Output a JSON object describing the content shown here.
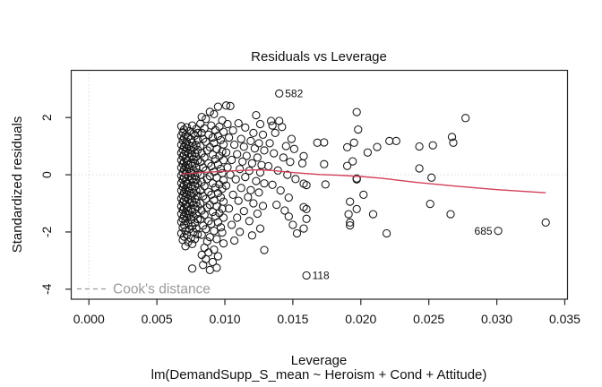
{
  "title": "Residuals vs Leverage",
  "axes": {
    "xlabel": "Leverage",
    "sublabel": "lm(DemandSupp_S_mean ~ Heroism + Cond + Attitude)",
    "ylabel": "Standardized residuals"
  },
  "legend": {
    "label": "Cook's distance",
    "color": "#9a9a9a",
    "style": "dashed"
  },
  "colors": {
    "point_stroke": "#161616",
    "smooth_line": "#d23f5a",
    "reference_dotted": "#c8c8c8",
    "axis": "#262626",
    "text": "#111111",
    "legend_gray": "#9a9a9a"
  },
  "chart_data": {
    "type": "scatter",
    "title": "Residuals vs Leverage",
    "xlabel": "Leverage",
    "ylabel": "Standardized residuals",
    "xlim": [
      -0.0013,
      0.0352
    ],
    "ylim": [
      -4.35,
      3.65
    ],
    "x_ticks": [
      0.0,
      0.005,
      0.01,
      0.015,
      0.02,
      0.025,
      0.03,
      0.035
    ],
    "x_tick_labels": [
      "0.000",
      "0.005",
      "0.010",
      "0.015",
      "0.020",
      "0.025",
      "0.030",
      "0.035"
    ],
    "y_ticks": [
      -4,
      -2,
      0,
      2
    ],
    "y_tick_labels": [
      "-4",
      "-2",
      "0",
      "2"
    ],
    "grid": false,
    "reference_lines": {
      "h": 0,
      "v": 0
    },
    "legend_position": "bottom-left",
    "labeled_points": [
      {
        "id": "582",
        "x": 0.014,
        "y": 2.84,
        "side": "right"
      },
      {
        "id": "118",
        "x": 0.016,
        "y": -3.52,
        "side": "right"
      },
      {
        "id": "685",
        "x": 0.0301,
        "y": -1.96,
        "side": "left"
      }
    ],
    "smooth_line": [
      [
        0.0068,
        0.02
      ],
      [
        0.008,
        0.07
      ],
      [
        0.009,
        0.1
      ],
      [
        0.01,
        0.12
      ],
      [
        0.0112,
        0.15
      ],
      [
        0.0125,
        0.17
      ],
      [
        0.0135,
        0.15
      ],
      [
        0.0145,
        0.1
      ],
      [
        0.0155,
        0.06
      ],
      [
        0.017,
        0.01
      ],
      [
        0.0185,
        -0.02
      ],
      [
        0.02,
        -0.06
      ],
      [
        0.0215,
        -0.12
      ],
      [
        0.024,
        -0.26
      ],
      [
        0.027,
        -0.4
      ],
      [
        0.03,
        -0.52
      ],
      [
        0.0336,
        -0.63
      ]
    ],
    "points": [
      [
        0.0068,
        1.7
      ],
      [
        0.0072,
        1.66
      ],
      [
        0.0076,
        1.72
      ],
      [
        0.007,
        1.58
      ],
      [
        0.0079,
        1.6
      ],
      [
        0.0074,
        1.52
      ],
      [
        0.0069,
        1.48
      ],
      [
        0.0077,
        1.44
      ],
      [
        0.0071,
        1.4
      ],
      [
        0.008,
        1.46
      ],
      [
        0.0068,
        1.36
      ],
      [
        0.0073,
        1.33
      ],
      [
        0.0078,
        1.37
      ],
      [
        0.007,
        1.28
      ],
      [
        0.0075,
        1.24
      ],
      [
        0.0069,
        1.2
      ],
      [
        0.008,
        1.22
      ],
      [
        0.0072,
        1.16
      ],
      [
        0.0076,
        1.12
      ],
      [
        0.0071,
        1.08
      ],
      [
        0.0068,
        1.05
      ],
      [
        0.0074,
        1.02
      ],
      [
        0.0079,
        1.04
      ],
      [
        0.007,
        0.98
      ],
      [
        0.0077,
        0.95
      ],
      [
        0.0072,
        0.92
      ],
      [
        0.0069,
        0.88
      ],
      [
        0.0075,
        0.85
      ],
      [
        0.008,
        0.87
      ],
      [
        0.0071,
        0.8
      ],
      [
        0.0068,
        0.77
      ],
      [
        0.0073,
        0.74
      ],
      [
        0.0078,
        0.76
      ],
      [
        0.007,
        0.7
      ],
      [
        0.0076,
        0.67
      ],
      [
        0.0069,
        0.64
      ],
      [
        0.0074,
        0.61
      ],
      [
        0.0079,
        0.63
      ],
      [
        0.0071,
        0.57
      ],
      [
        0.0077,
        0.54
      ],
      [
        0.0068,
        0.51
      ],
      [
        0.0072,
        0.48
      ],
      [
        0.008,
        0.5
      ],
      [
        0.007,
        0.44
      ],
      [
        0.0075,
        0.41
      ],
      [
        0.0069,
        0.38
      ],
      [
        0.0078,
        0.4
      ],
      [
        0.0073,
        0.34
      ],
      [
        0.0076,
        0.31
      ],
      [
        0.0071,
        0.28
      ],
      [
        0.0068,
        0.25
      ],
      [
        0.0074,
        0.22
      ],
      [
        0.0079,
        0.24
      ],
      [
        0.007,
        0.18
      ],
      [
        0.0077,
        0.15
      ],
      [
        0.0072,
        0.12
      ],
      [
        0.0069,
        0.08
      ],
      [
        0.0075,
        0.05
      ],
      [
        0.008,
        0.07
      ],
      [
        0.0071,
        0.01
      ],
      [
        0.0068,
        -0.03
      ],
      [
        0.0073,
        -0.06
      ],
      [
        0.0078,
        -0.04
      ],
      [
        0.007,
        -0.1
      ],
      [
        0.0076,
        -0.13
      ],
      [
        0.0069,
        -0.16
      ],
      [
        0.0074,
        -0.19
      ],
      [
        0.0079,
        -0.17
      ],
      [
        0.0071,
        -0.23
      ],
      [
        0.0077,
        -0.26
      ],
      [
        0.0068,
        -0.29
      ],
      [
        0.0072,
        -0.32
      ],
      [
        0.008,
        -0.3
      ],
      [
        0.007,
        -0.36
      ],
      [
        0.0075,
        -0.39
      ],
      [
        0.0069,
        -0.42
      ],
      [
        0.0078,
        -0.4
      ],
      [
        0.0073,
        -0.46
      ],
      [
        0.0076,
        -0.49
      ],
      [
        0.0071,
        -0.52
      ],
      [
        0.0068,
        -0.55
      ],
      [
        0.0074,
        -0.58
      ],
      [
        0.0079,
        -0.56
      ],
      [
        0.007,
        -0.62
      ],
      [
        0.0077,
        -0.65
      ],
      [
        0.0072,
        -0.68
      ],
      [
        0.0069,
        -0.72
      ],
      [
        0.0075,
        -0.75
      ],
      [
        0.008,
        -0.73
      ],
      [
        0.0071,
        -0.79
      ],
      [
        0.0068,
        -0.83
      ],
      [
        0.0073,
        -0.86
      ],
      [
        0.0078,
        -0.84
      ],
      [
        0.007,
        -0.9
      ],
      [
        0.0076,
        -0.93
      ],
      [
        0.0069,
        -0.96
      ],
      [
        0.0074,
        -0.99
      ],
      [
        0.0079,
        -0.97
      ],
      [
        0.0071,
        -1.03
      ],
      [
        0.0077,
        -1.06
      ],
      [
        0.0068,
        -1.1
      ],
      [
        0.0072,
        -1.13
      ],
      [
        0.008,
        -1.11
      ],
      [
        0.007,
        -1.17
      ],
      [
        0.0075,
        -1.2
      ],
      [
        0.0069,
        -1.23
      ],
      [
        0.0078,
        -1.21
      ],
      [
        0.0073,
        -1.27
      ],
      [
        0.0076,
        -1.3
      ],
      [
        0.0071,
        -1.33
      ],
      [
        0.0068,
        -1.37
      ],
      [
        0.0074,
        -1.4
      ],
      [
        0.0079,
        -1.38
      ],
      [
        0.007,
        -1.44
      ],
      [
        0.0077,
        -1.47
      ],
      [
        0.0072,
        -1.5
      ],
      [
        0.0069,
        -1.54
      ],
      [
        0.0075,
        -1.57
      ],
      [
        0.008,
        -1.55
      ],
      [
        0.0071,
        -1.61
      ],
      [
        0.0068,
        -1.65
      ],
      [
        0.0073,
        -1.7
      ],
      [
        0.0078,
        -1.68
      ],
      [
        0.007,
        -1.76
      ],
      [
        0.0076,
        -1.8
      ],
      [
        0.0069,
        -1.85
      ],
      [
        0.0074,
        -1.9
      ],
      [
        0.0079,
        -1.88
      ],
      [
        0.0071,
        -1.96
      ],
      [
        0.0077,
        -2.0
      ],
      [
        0.0068,
        -2.05
      ],
      [
        0.0072,
        -2.1
      ],
      [
        0.008,
        -2.08
      ],
      [
        0.007,
        -2.16
      ],
      [
        0.0075,
        -2.22
      ],
      [
        0.0069,
        -2.28
      ],
      [
        0.0078,
        -2.25
      ],
      [
        0.0073,
        -2.35
      ],
      [
        0.0076,
        -2.42
      ],
      [
        0.0071,
        -2.5
      ],
      [
        0.0076,
        -3.28
      ],
      [
        0.0095,
        2.38
      ],
      [
        0.0089,
        2.2
      ],
      [
        0.0083,
        2.02
      ],
      [
        0.0092,
        2.12
      ],
      [
        0.0086,
        1.95
      ],
      [
        0.0098,
        1.9
      ],
      [
        0.0082,
        1.78
      ],
      [
        0.009,
        1.72
      ],
      [
        0.0096,
        1.68
      ],
      [
        0.0085,
        1.62
      ],
      [
        0.0093,
        1.56
      ],
      [
        0.0099,
        1.5
      ],
      [
        0.0083,
        1.46
      ],
      [
        0.0088,
        1.4
      ],
      [
        0.0095,
        1.36
      ],
      [
        0.0091,
        1.3
      ],
      [
        0.0084,
        1.25
      ],
      [
        0.0097,
        1.21
      ],
      [
        0.0086,
        1.15
      ],
      [
        0.0092,
        1.1
      ],
      [
        0.0099,
        1.06
      ],
      [
        0.0082,
        1.0
      ],
      [
        0.0089,
        0.96
      ],
      [
        0.0094,
        0.9
      ],
      [
        0.0087,
        0.85
      ],
      [
        0.0098,
        0.81
      ],
      [
        0.0083,
        0.75
      ],
      [
        0.0091,
        0.7
      ],
      [
        0.0096,
        0.66
      ],
      [
        0.0085,
        0.6
      ],
      [
        0.0093,
        0.55
      ],
      [
        0.0099,
        0.51
      ],
      [
        0.0082,
        0.45
      ],
      [
        0.0088,
        0.4
      ],
      [
        0.0095,
        0.36
      ],
      [
        0.009,
        0.3
      ],
      [
        0.0084,
        0.25
      ],
      [
        0.0097,
        0.21
      ],
      [
        0.0086,
        0.15
      ],
      [
        0.0092,
        0.1
      ],
      [
        0.0098,
        0.06
      ],
      [
        0.0082,
        0.0
      ],
      [
        0.0089,
        -0.05
      ],
      [
        0.0094,
        -0.1
      ],
      [
        0.0087,
        -0.15
      ],
      [
        0.0099,
        -0.19
      ],
      [
        0.0083,
        -0.25
      ],
      [
        0.0091,
        -0.3
      ],
      [
        0.0096,
        -0.34
      ],
      [
        0.0085,
        -0.4
      ],
      [
        0.0093,
        -0.45
      ],
      [
        0.0098,
        -0.49
      ],
      [
        0.0082,
        -0.55
      ],
      [
        0.0088,
        -0.6
      ],
      [
        0.0095,
        -0.64
      ],
      [
        0.009,
        -0.7
      ],
      [
        0.0084,
        -0.75
      ],
      [
        0.0097,
        -0.79
      ],
      [
        0.0086,
        -0.85
      ],
      [
        0.0092,
        -0.9
      ],
      [
        0.0099,
        -0.94
      ],
      [
        0.0082,
        -1.0
      ],
      [
        0.0089,
        -1.05
      ],
      [
        0.0094,
        -1.1
      ],
      [
        0.0087,
        -1.15
      ],
      [
        0.0098,
        -1.19
      ],
      [
        0.0083,
        -1.25
      ],
      [
        0.0091,
        -1.3
      ],
      [
        0.0096,
        -1.34
      ],
      [
        0.0085,
        -1.4
      ],
      [
        0.0093,
        -1.45
      ],
      [
        0.0099,
        -1.5
      ],
      [
        0.0082,
        -1.56
      ],
      [
        0.0088,
        -1.62
      ],
      [
        0.0095,
        -1.66
      ],
      [
        0.009,
        -1.72
      ],
      [
        0.0084,
        -1.78
      ],
      [
        0.0097,
        -1.84
      ],
      [
        0.0086,
        -1.9
      ],
      [
        0.0092,
        -1.96
      ],
      [
        0.0098,
        -2.02
      ],
      [
        0.0083,
        -2.1
      ],
      [
        0.0089,
        -2.18
      ],
      [
        0.0094,
        -2.25
      ],
      [
        0.0087,
        -2.33
      ],
      [
        0.0099,
        -2.4
      ],
      [
        0.0085,
        -2.55
      ],
      [
        0.0092,
        -2.62
      ],
      [
        0.0088,
        -2.72
      ],
      [
        0.0083,
        -2.8
      ],
      [
        0.0095,
        -2.85
      ],
      [
        0.0086,
        -2.95
      ],
      [
        0.0091,
        -3.05
      ],
      [
        0.0084,
        -3.15
      ],
      [
        0.0094,
        -3.25
      ],
      [
        0.0089,
        -3.33
      ],
      [
        0.0104,
        2.4
      ],
      [
        0.0101,
        2.42
      ],
      [
        0.0102,
        1.77
      ],
      [
        0.0123,
        2.08
      ],
      [
        0.0126,
        1.77
      ],
      [
        0.011,
        1.8
      ],
      [
        0.0115,
        1.65
      ],
      [
        0.0106,
        1.55
      ],
      [
        0.0121,
        1.46
      ],
      [
        0.0128,
        1.4
      ],
      [
        0.0103,
        1.3
      ],
      [
        0.0112,
        1.25
      ],
      [
        0.0119,
        1.18
      ],
      [
        0.0125,
        1.1
      ],
      [
        0.0107,
        1.05
      ],
      [
        0.0114,
        0.98
      ],
      [
        0.0122,
        0.92
      ],
      [
        0.0129,
        0.85
      ],
      [
        0.0101,
        0.78
      ],
      [
        0.0109,
        0.72
      ],
      [
        0.0116,
        0.66
      ],
      [
        0.0124,
        0.6
      ],
      [
        0.0105,
        0.52
      ],
      [
        0.0113,
        0.46
      ],
      [
        0.012,
        0.4
      ],
      [
        0.0127,
        0.34
      ],
      [
        0.0102,
        0.26
      ],
      [
        0.0111,
        0.2
      ],
      [
        0.0118,
        0.14
      ],
      [
        0.0126,
        0.08
      ],
      [
        0.0104,
        0.0
      ],
      [
        0.0115,
        -0.08
      ],
      [
        0.0108,
        -0.16
      ],
      [
        0.0123,
        -0.22
      ],
      [
        0.0129,
        -0.3
      ],
      [
        0.0101,
        -0.38
      ],
      [
        0.0112,
        -0.46
      ],
      [
        0.0119,
        -0.54
      ],
      [
        0.0125,
        -0.62
      ],
      [
        0.0106,
        -0.7
      ],
      [
        0.0117,
        -0.78
      ],
      [
        0.011,
        -0.91
      ],
      [
        0.0121,
        -1.0
      ],
      [
        0.0128,
        -1.09
      ],
      [
        0.0103,
        -1.18
      ],
      [
        0.0114,
        -1.27
      ],
      [
        0.0124,
        -1.36
      ],
      [
        0.0109,
        -1.5
      ],
      [
        0.0118,
        -1.62
      ],
      [
        0.0105,
        -1.75
      ],
      [
        0.0126,
        -1.88
      ],
      [
        0.0111,
        -2.0
      ],
      [
        0.012,
        -2.12
      ],
      [
        0.0107,
        -2.3
      ],
      [
        0.0129,
        -2.63
      ],
      [
        0.0134,
        1.88
      ],
      [
        0.014,
        1.88
      ],
      [
        0.0135,
        1.72
      ],
      [
        0.0142,
        1.67
      ],
      [
        0.0137,
        1.46
      ],
      [
        0.0149,
        1.25
      ],
      [
        0.0133,
        1.1
      ],
      [
        0.0145,
        1.0
      ],
      [
        0.0151,
        0.9
      ],
      [
        0.0136,
        0.75
      ],
      [
        0.0143,
        0.6
      ],
      [
        0.0148,
        0.45
      ],
      [
        0.0132,
        0.3
      ],
      [
        0.0139,
        0.15
      ],
      [
        0.0146,
        0.0
      ],
      [
        0.0152,
        -0.15
      ],
      [
        0.0135,
        -0.35
      ],
      [
        0.0141,
        -0.55
      ],
      [
        0.0147,
        -0.8
      ],
      [
        0.0138,
        -1.05
      ],
      [
        0.0144,
        -1.25
      ],
      [
        0.0147,
        -1.46
      ],
      [
        0.015,
        -1.75
      ],
      [
        0.0153,
        -2.05
      ],
      [
        0.0158,
        0.65
      ],
      [
        0.0157,
        0.4
      ],
      [
        0.0168,
        1.12
      ],
      [
        0.0173,
        1.13
      ],
      [
        0.0173,
        0.37
      ],
      [
        0.019,
        0.96
      ],
      [
        0.0195,
        1.12
      ],
      [
        0.0197,
        2.19
      ],
      [
        0.0198,
        1.58
      ],
      [
        0.0205,
        0.78
      ],
      [
        0.0212,
        0.97
      ],
      [
        0.019,
        0.31
      ],
      [
        0.0194,
        0.47
      ],
      [
        0.0197,
        -0.13
      ],
      [
        0.0158,
        -0.31
      ],
      [
        0.016,
        -0.36
      ],
      [
        0.0174,
        -0.34
      ],
      [
        0.0197,
        -0.16
      ],
      [
        0.0202,
        -0.7
      ],
      [
        0.0192,
        -0.94
      ],
      [
        0.0158,
        -1.13
      ],
      [
        0.016,
        -1.2
      ],
      [
        0.0197,
        -1.2
      ],
      [
        0.0209,
        -1.38
      ],
      [
        0.0191,
        -1.38
      ],
      [
        0.0192,
        -1.67
      ],
      [
        0.0192,
        -1.77
      ],
      [
        0.016,
        -1.54
      ],
      [
        0.0158,
        -1.88
      ],
      [
        0.0219,
        -2.05
      ],
      [
        0.0221,
        1.18
      ],
      [
        0.0226,
        1.18
      ],
      [
        0.0277,
        1.98
      ],
      [
        0.0243,
        0.99
      ],
      [
        0.0253,
        1.03
      ],
      [
        0.0267,
        1.32
      ],
      [
        0.0268,
        1.12
      ],
      [
        0.0243,
        0.22
      ],
      [
        0.0252,
        -0.1
      ],
      [
        0.0251,
        -1.02
      ],
      [
        0.0266,
        -1.38
      ],
      [
        0.0336,
        -1.67
      ]
    ]
  }
}
